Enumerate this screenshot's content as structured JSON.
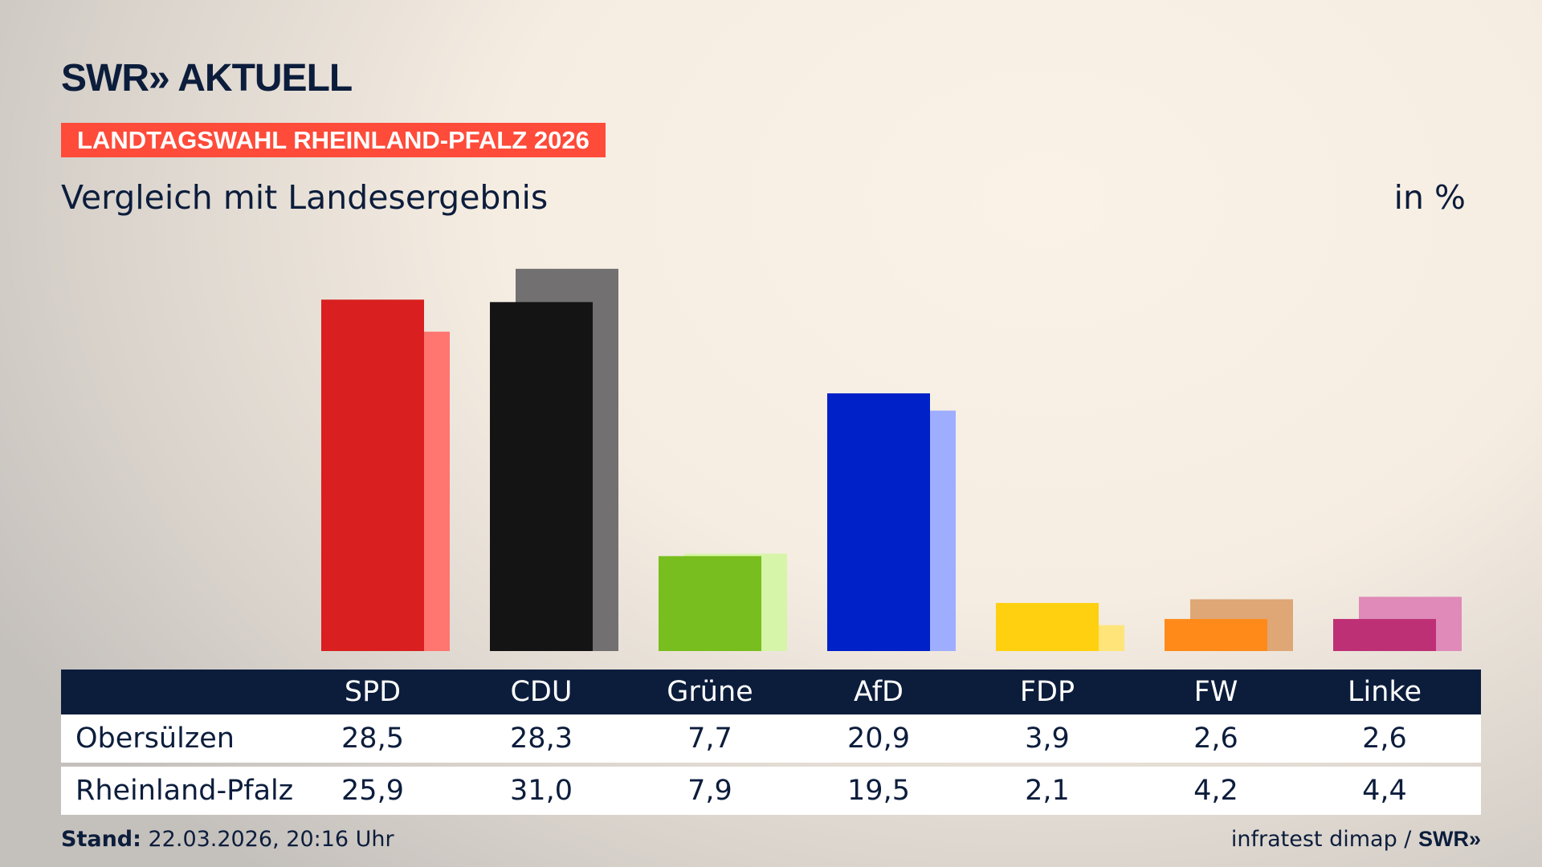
{
  "header": {
    "logo": "SWR» AKTUELL",
    "banner": "LANDTAGSWAHL RHEINLAND-PFALZ 2026",
    "subtitle": "Vergleich mit Landesergebnis",
    "unit": "in %"
  },
  "chart_data": {
    "type": "bar",
    "categories": [
      "SPD",
      "CDU",
      "Grüne",
      "AfD",
      "FDP",
      "FW",
      "Linke"
    ],
    "series": [
      {
        "name": "Obersülzen",
        "values": [
          28.5,
          28.3,
          7.7,
          20.9,
          3.9,
          2.6,
          2.6
        ],
        "display": [
          "28,5",
          "28,3",
          "7,7",
          "20,9",
          "3,9",
          "2,6",
          "2,6"
        ],
        "colors": [
          "#d91f1f",
          "#141414",
          "#78be1e",
          "#0020c8",
          "#ffd00f",
          "#ff8a1a",
          "#be3075"
        ]
      },
      {
        "name": "Rheinland-Pfalz",
        "values": [
          25.9,
          31.0,
          7.9,
          19.5,
          2.1,
          4.2,
          4.4
        ],
        "display": [
          "25,9",
          "31,0",
          "7,9",
          "19,5",
          "2,1",
          "4,2",
          "4,4"
        ],
        "colors": [
          "#ff7570",
          "#727070",
          "#d6f5a8",
          "#9fadff",
          "#ffe47a",
          "#dea775",
          "#df8ab8"
        ]
      }
    ],
    "grid": false
  },
  "footer": {
    "stand_label": "Stand:",
    "stand_value": " 22.03.2026, 20:16 Uhr",
    "source": "infratest dimap / ",
    "source_logo": "SWR»"
  }
}
